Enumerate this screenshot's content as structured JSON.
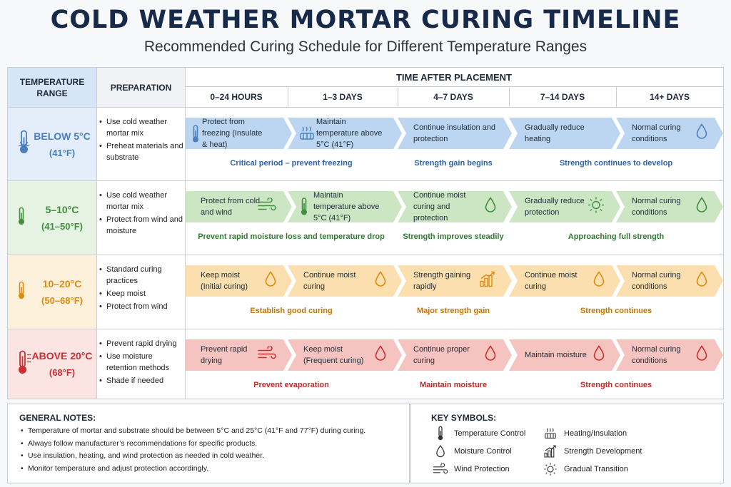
{
  "title": "COLD WEATHER MORTAR CURING TIMELINE",
  "subtitle": "Recommended Curing Schedule for Different Temperature Ranges",
  "header": {
    "temperature_range": "TEMPERATURE RANGE",
    "preparation": "PREPARATION",
    "time_after_placement": "TIME AFTER PLACEMENT",
    "periods": [
      "0–24 HOURS",
      "1–3 DAYS",
      "4–7 DAYS",
      "7–14 DAYS",
      "14+ DAYS"
    ]
  },
  "colors": {
    "blue": "#4a7fc1",
    "green": "#3f8f3f",
    "orange": "#e08a10",
    "red": "#cc2f2f",
    "blue_bg": "#e3eefa",
    "green_bg": "#e6f2e2",
    "orange_bg": "#fdf1dc",
    "red_bg": "#fbe4e2",
    "blue_chev": "#bcd6f2",
    "green_chev": "#cce6c4",
    "orange_chev": "#fbdfae",
    "red_chev": "#f6c4c0"
  },
  "rows": [
    {
      "temp": "BELOW 5°C",
      "temp_f": "(41°F)",
      "icon": "thermometer-snowflake-icon",
      "prep": [
        "Use cold weather mortar mix",
        "Preheat materials and substrate"
      ],
      "steps": [
        {
          "text": "Protect from freezing (Insulate & heat)",
          "icon": "thermometer-icon"
        },
        {
          "text": "Maintain temperature above 5°C (41°F)",
          "icon": "heater-icon"
        },
        {
          "text": "Continue insulation and protection",
          "icon": ""
        },
        {
          "text": "Gradually reduce heating",
          "icon": ""
        },
        {
          "text": "Normal curing conditions",
          "icon": "drop-icon"
        }
      ],
      "notes": [
        "Critical period – prevent freezing",
        "Strength gain begins",
        "Strength continues to develop"
      ]
    },
    {
      "temp": "5–10°C",
      "temp_f": "(41–50°F)",
      "icon": "thermometer-icon",
      "prep": [
        "Use cold weather mortar mix",
        "Protect from wind and moisture"
      ],
      "steps": [
        {
          "text": "Protect from cold and wind",
          "icon": "wind-icon"
        },
        {
          "text": "Maintain temperature above 5°C (41°F)",
          "icon": "thermometer-icon"
        },
        {
          "text": "Continue moist curing and protection",
          "icon": "drop-icon"
        },
        {
          "text": "Gradually reduce protection",
          "icon": "sun-icon"
        },
        {
          "text": "Normal curing conditions",
          "icon": "drop-icon"
        }
      ],
      "notes": [
        "Prevent rapid moisture loss and temperature drop",
        "Strength improves steadily",
        "Approaching full strength"
      ]
    },
    {
      "temp": "10–20°C",
      "temp_f": "(50–68°F)",
      "icon": "thermometer-icon",
      "prep": [
        "Standard curing practices",
        "Keep moist",
        "Protect from wind"
      ],
      "steps": [
        {
          "text": "Keep moist (Initial curing)",
          "icon": "drop-icon"
        },
        {
          "text": "Continue moist curing",
          "icon": "drop-icon"
        },
        {
          "text": "Strength gaining rapidly",
          "icon": "strength-icon"
        },
        {
          "text": "Continue moist curing",
          "icon": "drop-icon"
        },
        {
          "text": "Normal curing conditions",
          "icon": "drop-icon"
        }
      ],
      "notes": [
        "Establish good curing",
        "Major strength gain",
        "Strength continues"
      ]
    },
    {
      "temp": "ABOVE 20°C",
      "temp_f": "(68°F)",
      "icon": "thermometer-hot-icon",
      "prep": [
        "Prevent rapid drying",
        "Use moisture retention methods",
        "Shade if needed"
      ],
      "steps": [
        {
          "text": "Prevent rapid drying",
          "icon": "wind-icon"
        },
        {
          "text": "Keep moist (Frequent curing)",
          "icon": "drop-icon"
        },
        {
          "text": "Continue proper curing",
          "icon": "drop-icon"
        },
        {
          "text": "Maintain moisture",
          "icon": "drop-icon"
        },
        {
          "text": "Normal curing conditions",
          "icon": "drop-icon"
        }
      ],
      "notes": [
        "Prevent evaporation",
        "Maintain moisture",
        "Strength continues"
      ]
    }
  ],
  "general_notes": {
    "title": "GENERAL NOTES:",
    "items": [
      "Temperature of mortar and substrate should be between 5°C and 25°C (41°F and 77°F) during curing.",
      "Always follow manufacturer’s recommendations for specific products.",
      "Use insulation, heating, and wind protection as needed in cold weather.",
      "Monitor temperature and adjust protection accordingly."
    ]
  },
  "key_symbols": {
    "title": "KEY SYMBOLS:",
    "items": [
      {
        "icon": "thermometer-icon",
        "label": "Temperature Control"
      },
      {
        "icon": "heater-icon",
        "label": "Heating/Insulation"
      },
      {
        "icon": "drop-icon",
        "label": "Moisture Control"
      },
      {
        "icon": "strength-icon",
        "label": "Strength Development"
      },
      {
        "icon": "wind-icon",
        "label": "Wind Protection"
      },
      {
        "icon": "sun-icon",
        "label": "Gradual Transition"
      }
    ]
  }
}
